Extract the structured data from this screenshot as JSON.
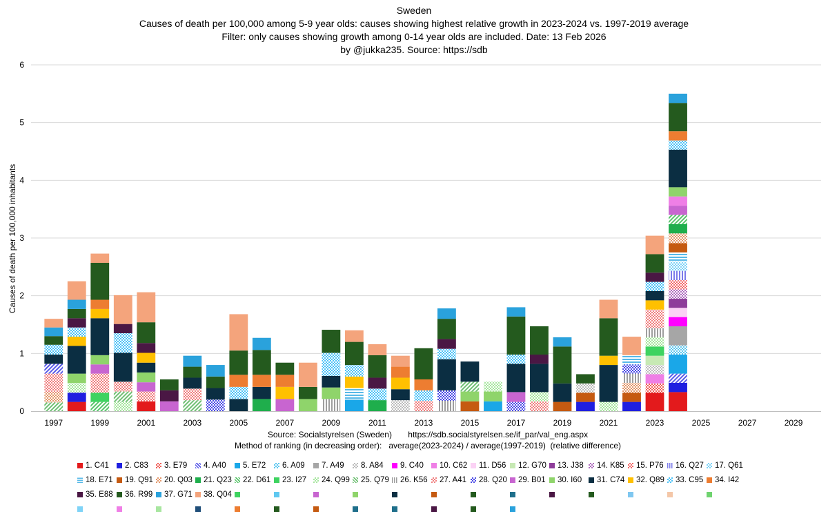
{
  "chart_data": {
    "type": "bar",
    "stacked": true,
    "title_lines": [
      "Sweden",
      "Causes of death per 100,000 among  5-9 year olds: causes showing highest relative  growth in 2023-2024 vs. 1997-2019 average",
      "Filter: only causes showing growth among 0-14 year olds are included.   Date: 13 Feb 2026",
      "by @jukka235. Source: https://sdb"
    ],
    "ylabel": "Causes of death per 100,000 inhabitants",
    "ylim": [
      0,
      6
    ],
    "yticks": [
      "0",
      "1",
      "2",
      "3",
      "4",
      "5",
      "6"
    ],
    "grid": true,
    "categories": [
      "1997",
      "1998",
      "1999",
      "2000",
      "2001",
      "2002",
      "2003",
      "2004",
      "2005",
      "2006",
      "2007",
      "2008",
      "2009",
      "2010",
      "2011",
      "2012",
      "2013",
      "2014",
      "2015",
      "2016",
      "2017",
      "2018",
      "2019",
      "2020",
      "2021",
      "2022",
      "2023",
      "2024",
      "2025",
      "2026",
      "2027",
      "2028",
      "2029",
      "2030"
    ],
    "xtick_labels": [
      "1997",
      "1999",
      "2001",
      "2003",
      "2005",
      "2007",
      "2009",
      "2011",
      "2013",
      "2015",
      "2017",
      "2019",
      "2021",
      "2023",
      "2025",
      "2027",
      "2029"
    ],
    "series_styles": [
      {
        "key": "C41",
        "color": "#e31a1c",
        "pattern": "solid"
      },
      {
        "key": "C83",
        "color": "#1f1fe0",
        "pattern": "solid"
      },
      {
        "key": "E79",
        "color": "#f0605a",
        "pattern": "dots"
      },
      {
        "key": "A40",
        "color": "#5a5ae8",
        "pattern": "diag"
      },
      {
        "key": "E72",
        "color": "#1aa7e8",
        "pattern": "solid"
      },
      {
        "key": "A09",
        "color": "#5fc8f0",
        "pattern": "dots"
      },
      {
        "key": "A49",
        "color": "#a6a6a6",
        "pattern": "solid"
      },
      {
        "key": "A84",
        "color": "#bdbdbd",
        "pattern": "dots"
      },
      {
        "key": "C40",
        "color": "#ff00ff",
        "pattern": "solid"
      },
      {
        "key": "C62",
        "color": "#ef7fe6",
        "pattern": "solid"
      },
      {
        "key": "D56",
        "color": "#fbd2f5",
        "pattern": "solid"
      },
      {
        "key": "G70",
        "color": "#c7e9b4",
        "pattern": "solid"
      },
      {
        "key": "J38",
        "color": "#8e3d9a",
        "pattern": "solid"
      },
      {
        "key": "K85",
        "color": "#b06fc0",
        "pattern": "dots"
      },
      {
        "key": "P76",
        "color": "#f36b6b",
        "pattern": "dots"
      },
      {
        "key": "Q27",
        "color": "#7b7bea",
        "pattern": "vstripe"
      },
      {
        "key": "Q61",
        "color": "#7fd3f7",
        "pattern": "dots"
      },
      {
        "key": "E71",
        "color": "#57b9e8",
        "pattern": "hstripe"
      },
      {
        "key": "Q91",
        "color": "#c55a11",
        "pattern": "solid"
      },
      {
        "key": "Q03",
        "color": "#e3986b",
        "pattern": "dots"
      },
      {
        "key": "Q23",
        "color": "#1fae4c",
        "pattern": "solid"
      },
      {
        "key": "D61",
        "color": "#58c46a",
        "pattern": "diag"
      },
      {
        "key": "I27",
        "color": "#3ed360",
        "pattern": "solid"
      },
      {
        "key": "Q99",
        "color": "#a8e6a0",
        "pattern": "dots"
      },
      {
        "key": "Q79",
        "color": "#6fbf73",
        "pattern": "diag"
      },
      {
        "key": "K56",
        "color": "#9e9e9e",
        "pattern": "vstripe"
      },
      {
        "key": "A41",
        "color": "#f08080",
        "pattern": "dots"
      },
      {
        "key": "Q20",
        "color": "#4d4de6",
        "pattern": "dots"
      },
      {
        "key": "B01",
        "color": "#c865d0",
        "pattern": "solid"
      },
      {
        "key": "I60",
        "color": "#8fd46b",
        "pattern": "solid"
      },
      {
        "key": "C74",
        "color": "#0b2e42",
        "pattern": "solid"
      },
      {
        "key": "Q89",
        "color": "#ffc000",
        "pattern": "solid"
      },
      {
        "key": "C95",
        "color": "#4fc3f7",
        "pattern": "dots"
      },
      {
        "key": "I42",
        "color": "#ed7d31",
        "pattern": "solid"
      },
      {
        "key": "E88",
        "color": "#4a1744",
        "pattern": "solid"
      },
      {
        "key": "R99",
        "color": "#245a1e",
        "pattern": "solid"
      },
      {
        "key": "G71",
        "color": "#2aa2dc",
        "pattern": "solid"
      },
      {
        "key": "Q04",
        "color": "#f4a47c",
        "pattern": "solid"
      }
    ],
    "stacks": [
      {
        "year": "1997",
        "segments": [
          [
            "Q79",
            0.15
          ],
          [
            "Q03",
            0.18
          ],
          [
            "A41",
            0.32
          ],
          [
            "A40",
            0.17
          ],
          [
            "C74",
            0.16
          ],
          [
            "C95",
            0.17
          ],
          [
            "R99",
            0.15
          ],
          [
            "G71",
            0.15
          ],
          [
            "Q04",
            0.15
          ]
        ]
      },
      {
        "year": "1998",
        "segments": [
          [
            "C41",
            0.16
          ],
          [
            "C83",
            0.16
          ],
          [
            "Q99",
            0.17
          ],
          [
            "I60",
            0.16
          ],
          [
            "C74",
            0.48
          ],
          [
            "Q89",
            0.16
          ],
          [
            "C95",
            0.16
          ],
          [
            "E88",
            0.16
          ],
          [
            "R99",
            0.16
          ],
          [
            "G71",
            0.16
          ],
          [
            "Q04",
            0.32
          ]
        ]
      },
      {
        "year": "1999",
        "segments": [
          [
            "D61",
            0.16
          ],
          [
            "I27",
            0.16
          ],
          [
            "A41",
            0.33
          ],
          [
            "B01",
            0.16
          ],
          [
            "I60",
            0.16
          ],
          [
            "C74",
            0.64
          ],
          [
            "Q89",
            0.16
          ],
          [
            "I42",
            0.16
          ],
          [
            "R99",
            0.64
          ],
          [
            "Q04",
            0.16
          ]
        ]
      },
      {
        "year": "2000",
        "segments": [
          [
            "Q99",
            0.16
          ],
          [
            "Q79",
            0.18
          ],
          [
            "A41",
            0.17
          ],
          [
            "C74",
            0.5
          ],
          [
            "C95",
            0.34
          ],
          [
            "E88",
            0.16
          ],
          [
            "Q04",
            0.5
          ]
        ]
      },
      {
        "year": "2001",
        "segments": [
          [
            "C41",
            0.17
          ],
          [
            "A41",
            0.17
          ],
          [
            "B01",
            0.16
          ],
          [
            "I60",
            0.17
          ],
          [
            "C74",
            0.17
          ],
          [
            "Q89",
            0.17
          ],
          [
            "E88",
            0.17
          ],
          [
            "R99",
            0.36
          ],
          [
            "Q04",
            0.52
          ]
        ]
      },
      {
        "year": "2002",
        "segments": [
          [
            "B01",
            0.17
          ],
          [
            "E88",
            0.19
          ],
          [
            "R99",
            0.19
          ]
        ]
      },
      {
        "year": "2003",
        "segments": [
          [
            "Q79",
            0.19
          ],
          [
            "A41",
            0.2
          ],
          [
            "C74",
            0.19
          ],
          [
            "R99",
            0.19
          ],
          [
            "G71",
            0.19
          ]
        ]
      },
      {
        "year": "2004",
        "segments": [
          [
            "Q20",
            0.2
          ],
          [
            "C74",
            0.2
          ],
          [
            "R99",
            0.2
          ],
          [
            "G71",
            0.2
          ]
        ]
      },
      {
        "year": "2005",
        "segments": [
          [
            "C74",
            0.21
          ],
          [
            "C95",
            0.21
          ],
          [
            "I42",
            0.21
          ],
          [
            "R99",
            0.42
          ],
          [
            "Q04",
            0.63
          ]
        ]
      },
      {
        "year": "2006",
        "segments": [
          [
            "Q23",
            0.21
          ],
          [
            "C74",
            0.21
          ],
          [
            "I42",
            0.21
          ],
          [
            "R99",
            0.43
          ],
          [
            "G71",
            0.21
          ]
        ]
      },
      {
        "year": "2007",
        "segments": [
          [
            "B01",
            0.21
          ],
          [
            "Q89",
            0.21
          ],
          [
            "I42",
            0.21
          ],
          [
            "R99",
            0.21
          ]
        ]
      },
      {
        "year": "2008",
        "segments": [
          [
            "I60",
            0.21
          ],
          [
            "R99",
            0.21
          ],
          [
            "Q04",
            0.42
          ]
        ]
      },
      {
        "year": "2009",
        "segments": [
          [
            "K56",
            0.21
          ],
          [
            "I60",
            0.2
          ],
          [
            "C74",
            0.2
          ],
          [
            "C95",
            0.4
          ],
          [
            "R99",
            0.4
          ]
        ]
      },
      {
        "year": "2010",
        "segments": [
          [
            "E72",
            0.2
          ],
          [
            "E71",
            0.2
          ],
          [
            "Q89",
            0.2
          ],
          [
            "C95",
            0.2
          ],
          [
            "R99",
            0.4
          ],
          [
            "Q04",
            0.2
          ]
        ]
      },
      {
        "year": "2011",
        "segments": [
          [
            "Q23",
            0.19
          ],
          [
            "C95",
            0.2
          ],
          [
            "E88",
            0.19
          ],
          [
            "R99",
            0.39
          ],
          [
            "Q04",
            0.19
          ]
        ]
      },
      {
        "year": "2012",
        "segments": [
          [
            "A84",
            0.19
          ],
          [
            "C74",
            0.19
          ],
          [
            "Q89",
            0.2
          ],
          [
            "I42",
            0.19
          ],
          [
            "Q04",
            0.19
          ]
        ]
      },
      {
        "year": "2013",
        "segments": [
          [
            "A41",
            0.18
          ],
          [
            "C95",
            0.18
          ],
          [
            "I42",
            0.19
          ],
          [
            "R99",
            0.54
          ]
        ]
      },
      {
        "year": "2014",
        "segments": [
          [
            "K56",
            0.18
          ],
          [
            "Q20",
            0.18
          ],
          [
            "C74",
            0.54
          ],
          [
            "C95",
            0.18
          ],
          [
            "E88",
            0.17
          ],
          [
            "R99",
            0.35
          ],
          [
            "G71",
            0.18
          ]
        ]
      },
      {
        "year": "2015",
        "segments": [
          [
            "Q91",
            0.17
          ],
          [
            "I60",
            0.17
          ],
          [
            "Q79",
            0.17
          ],
          [
            "C74",
            0.35
          ]
        ]
      },
      {
        "year": "2016",
        "segments": [
          [
            "E72",
            0.17
          ],
          [
            "I60",
            0.17
          ],
          [
            "Q99",
            0.17
          ]
        ]
      },
      {
        "year": "2017",
        "segments": [
          [
            "Q20",
            0.16
          ],
          [
            "B01",
            0.17
          ],
          [
            "C74",
            0.49
          ],
          [
            "C95",
            0.16
          ],
          [
            "R99",
            0.66
          ],
          [
            "G71",
            0.16
          ]
        ]
      },
      {
        "year": "2018",
        "segments": [
          [
            "A41",
            0.17
          ],
          [
            "Q99",
            0.16
          ],
          [
            "C74",
            0.49
          ],
          [
            "E88",
            0.16
          ],
          [
            "R99",
            0.49
          ]
        ]
      },
      {
        "year": "2019",
        "segments": [
          [
            "Q91",
            0.16
          ],
          [
            "C74",
            0.32
          ],
          [
            "R99",
            0.64
          ],
          [
            "G71",
            0.16
          ]
        ]
      },
      {
        "year": "2020",
        "segments": [
          [
            "C83",
            0.16
          ],
          [
            "Q91",
            0.16
          ],
          [
            "A84",
            0.16
          ],
          [
            "R99",
            0.16
          ]
        ]
      },
      {
        "year": "2021",
        "segments": [
          [
            "Q99",
            0.16
          ],
          [
            "C74",
            0.64
          ],
          [
            "Q89",
            0.16
          ],
          [
            "R99",
            0.65
          ],
          [
            "Q04",
            0.32
          ]
        ]
      },
      {
        "year": "2022",
        "segments": [
          [
            "C83",
            0.16
          ],
          [
            "Q91",
            0.16
          ],
          [
            "Q03",
            0.17
          ],
          [
            "K56",
            0.16
          ],
          [
            "Q20",
            0.16
          ],
          [
            "E71",
            0.16
          ],
          [
            "Q04",
            0.32
          ]
        ]
      },
      {
        "year": "2023",
        "segments": [
          [
            "C41",
            0.32
          ],
          [
            "E79",
            0.16
          ],
          [
            "C62",
            0.16
          ],
          [
            "A84",
            0.16
          ],
          [
            "G70",
            0.16
          ],
          [
            "I27",
            0.16
          ],
          [
            "Q99",
            0.16
          ],
          [
            "K56",
            0.16
          ],
          [
            "A41",
            0.32
          ],
          [
            "Q89",
            0.16
          ],
          [
            "C74",
            0.16
          ],
          [
            "C95",
            0.16
          ],
          [
            "E88",
            0.16
          ],
          [
            "R99",
            0.32
          ],
          [
            "Q04",
            0.32
          ]
        ]
      },
      {
        "year": "2024",
        "segments": [
          [
            "C41",
            0.33
          ],
          [
            "C83",
            0.16
          ],
          [
            "A40",
            0.16
          ],
          [
            "E72",
            0.33
          ],
          [
            "A09",
            0.16
          ],
          [
            "A49",
            0.33
          ],
          [
            "C40",
            0.16
          ],
          [
            "D56",
            0.16
          ],
          [
            "J38",
            0.16
          ],
          [
            "K85",
            0.16
          ],
          [
            "P76",
            0.16
          ],
          [
            "Q27",
            0.16
          ],
          [
            "Q61",
            0.16
          ],
          [
            "E71",
            0.16
          ],
          [
            "Q91",
            0.16
          ],
          [
            "Q03",
            0.17
          ],
          [
            "Q23",
            0.16
          ],
          [
            "D61",
            0.16
          ],
          [
            "B01",
            0.16
          ],
          [
            "C62",
            0.16
          ],
          [
            "I60",
            0.16
          ],
          [
            "C74",
            0.65
          ],
          [
            "C95",
            0.16
          ],
          [
            "I42",
            0.16
          ],
          [
            "R99",
            0.49
          ],
          [
            "G71",
            0.16
          ]
        ]
      }
    ],
    "source_lines": [
      "Source: Socialstyrelsen (Sweden)       https://sdb.socialstyrelsen.se/if_par/val_eng.aspx",
      "Method of ranking (in decreasing order):   average(2023-2024) / average(1997-2019)  (relative difference)"
    ],
    "legend": [
      "1. C41",
      "2. C83",
      "3. E79",
      "4. A40",
      "5. E72",
      "6. A09",
      "7. A49",
      "8. A84",
      "9. C40",
      "10. C62",
      "11. D56",
      "12. G70",
      "13. J38",
      "14. K85",
      "15. P76",
      "16. Q27",
      "17. Q61",
      "18. E71",
      "19. Q91",
      "20. Q03",
      "21. Q23",
      "22. D61",
      "23. I27",
      "24. Q99",
      "25. Q79",
      "26. K56",
      "27. A41",
      "28. Q20",
      "29. B01",
      "30. I60",
      "31. C74",
      "32. Q89",
      "33. C95",
      "34. I42",
      "35. E88",
      "36. R99",
      "37. G71",
      "38. Q04"
    ],
    "legend_extra_colors_row3": [
      "#3ed360",
      "#5fc8f0",
      "#c865d0",
      "#8fd46b",
      "#0b2e42",
      "#c55a11",
      "#245a1e",
      "#1f6f8b",
      "#4a1744",
      "#245a1e",
      "#7fc7f0",
      "#f4c7a8",
      "#6fd36f"
    ],
    "legend_extra_colors_row4": [
      "#7fd3f7",
      "#ef7fe6",
      "#a8e6a0",
      "#1f4e79",
      "#ed7d31",
      "#245a1e",
      "#c55a11",
      "#1f6f8b",
      "#1f6f8b",
      "#4a1744",
      "#245a1e",
      "#2aa2dc"
    ]
  }
}
